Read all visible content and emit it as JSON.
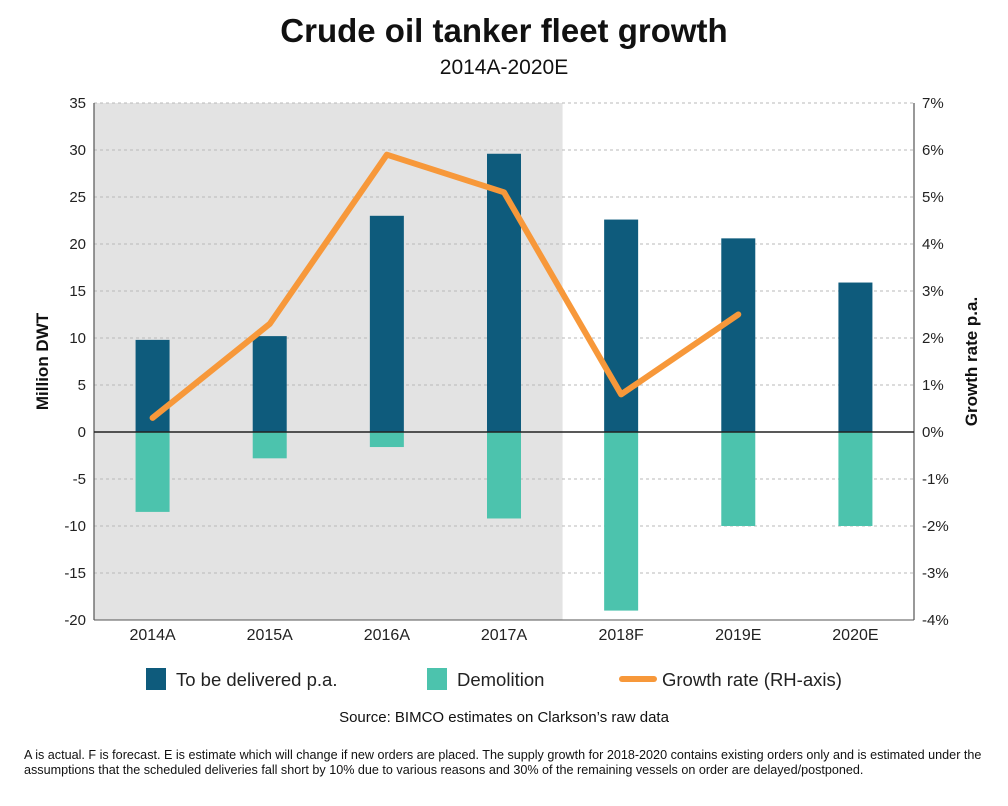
{
  "chart_data": {
    "type": "bar",
    "title": "Crude oil tanker fleet growth",
    "subtitle": "2014A-2020E",
    "categories": [
      "2014A",
      "2015A",
      "2016A",
      "2017A",
      "2018F",
      "2019E",
      "2020E"
    ],
    "series": [
      {
        "name": "To be delivered p.a.",
        "type": "bar",
        "axis": "left",
        "color": "#0e5b7c",
        "values": [
          9.8,
          10.2,
          23.0,
          29.6,
          22.6,
          20.6,
          15.9
        ]
      },
      {
        "name": "Demolition",
        "type": "bar",
        "axis": "left",
        "color": "#4cc3ad",
        "values": [
          -8.5,
          -2.8,
          -1.6,
          -9.2,
          -19.0,
          -10.0,
          -10.0
        ]
      },
      {
        "name": "Growth rate (RH-axis)",
        "type": "line",
        "axis": "right",
        "color": "#f7983a",
        "values": [
          0.3,
          2.3,
          5.9,
          5.1,
          0.8,
          2.5,
          null
        ]
      }
    ],
    "ylabel": "Million DWT",
    "y2label": "Growth rate p.a.",
    "ylim": [
      -20,
      35
    ],
    "y2lim": [
      -4,
      7
    ],
    "yticks": [
      "35",
      "30",
      "25",
      "20",
      "15",
      "10",
      "5",
      "0",
      "-5",
      "-10",
      "-15",
      "-20"
    ],
    "y2ticks": [
      "7%",
      "6%",
      "5%",
      "4%",
      "3%",
      "2%",
      "1%",
      "0%",
      "-1%",
      "-2%",
      "-3%",
      "-4%"
    ],
    "shaded_categories": [
      "2014A",
      "2015A",
      "2016A",
      "2017A"
    ],
    "grid": true,
    "legend_position": "bottom"
  },
  "source": "Source: BIMCO estimates on Clarkson’s raw data",
  "footnote": "A is actual. F is forecast. E is estimate which will change if new orders are placed. The supply growth for 2018-2020 contains existing orders only and is estimated under the assumptions that the scheduled deliveries fall short by 10% due to various reasons and 30% of the remaining vessels on order are delayed/postponed.",
  "colors": {
    "shade": "#e3e3e3",
    "grid": "#b8b8b8",
    "axis": "#555555"
  }
}
